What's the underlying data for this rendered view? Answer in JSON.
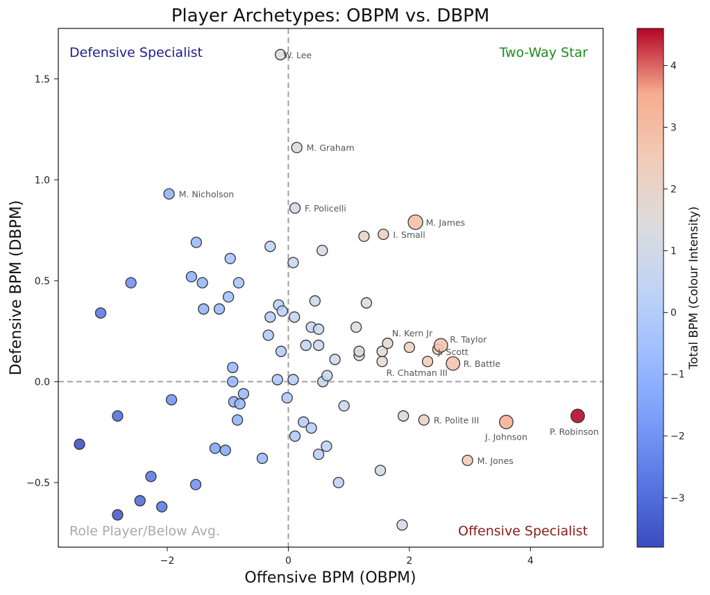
{
  "chart_data": {
    "type": "scatter",
    "title": "Player Archetypes: OBPM vs. DBPM",
    "xlabel": "Offensive BPM (OBPM)",
    "ylabel": "Defensive BPM (DBPM)",
    "xlim": [
      -3.8,
      5.2
    ],
    "ylim": [
      -0.82,
      1.75
    ],
    "xticks": [
      -2,
      0,
      2,
      4
    ],
    "yticks": [
      -0.5,
      0.0,
      0.5,
      1.0,
      1.5
    ],
    "xtick_labels": [
      "−2",
      "0",
      "2",
      "4"
    ],
    "ytick_labels": [
      "−0.5",
      "0.0",
      "0.5",
      "1.0",
      "1.5"
    ],
    "reference_lines": {
      "x": 0,
      "y": 0,
      "style": "dashed",
      "color": "#a0a0a0"
    },
    "quadrant_labels": [
      {
        "text": "Defensive Specialist",
        "position": "top-left",
        "color": "#1e1e8c"
      },
      {
        "text": "Two-Way Star",
        "position": "top-right",
        "color": "#1e8a1e"
      },
      {
        "text": "Role Player/Below Avg.",
        "position": "bottom-left",
        "color": "#aaaaaa"
      },
      {
        "text": "Offensive Specialist",
        "position": "bottom-right",
        "color": "#8b1a1a"
      }
    ],
    "colorbar": {
      "label": "Total BPM (Colour Intensity)",
      "range": [
        -3.8,
        4.6
      ],
      "ticks": [
        -3,
        -2,
        -1,
        0,
        1,
        2,
        3,
        4
      ],
      "tick_labels": [
        "−3",
        "−2",
        "−1",
        "0",
        "1",
        "2",
        "3",
        "4"
      ],
      "colormap": "coolwarm"
    },
    "points": [
      {
        "name": "W. Lee",
        "x": -0.13,
        "y": 1.62,
        "bpm": 1.5,
        "size": 1
      },
      {
        "name": "M. Graham",
        "x": 0.14,
        "y": 1.16,
        "bpm": 1.3,
        "size": 1
      },
      {
        "name": "M. Nicholson",
        "x": -1.97,
        "y": 0.93,
        "bpm": -1.04,
        "size": 1
      },
      {
        "name": "F. Policelli",
        "x": 0.11,
        "y": 0.86,
        "bpm": 0.97,
        "size": 1
      },
      {
        "name": "M. James",
        "x": 2.1,
        "y": 0.79,
        "bpm": 2.89,
        "size": 1.4
      },
      {
        "name": "I. Small",
        "x": 1.57,
        "y": 0.73,
        "bpm": 2.3,
        "size": 1
      },
      {
        "name": "",
        "x": 1.25,
        "y": 0.72,
        "bpm": 1.97,
        "size": 1
      },
      {
        "name": "",
        "x": 0.56,
        "y": 0.65,
        "bpm": 1.21,
        "size": 1
      },
      {
        "name": "",
        "x": -0.3,
        "y": 0.67,
        "bpm": 0.37,
        "size": 1
      },
      {
        "name": "",
        "x": 0.08,
        "y": 0.59,
        "bpm": 0.67,
        "size": 1
      },
      {
        "name": "",
        "x": -1.52,
        "y": 0.69,
        "bpm": -0.83,
        "size": 1
      },
      {
        "name": "",
        "x": -0.96,
        "y": 0.61,
        "bpm": -0.35,
        "size": 1
      },
      {
        "name": "",
        "x": -2.6,
        "y": 0.49,
        "bpm": -2.11,
        "size": 1
      },
      {
        "name": "",
        "x": -1.6,
        "y": 0.52,
        "bpm": -1.08,
        "size": 1
      },
      {
        "name": "",
        "x": -1.42,
        "y": 0.49,
        "bpm": -0.93,
        "size": 1
      },
      {
        "name": "",
        "x": -0.82,
        "y": 0.49,
        "bpm": -0.33,
        "size": 1
      },
      {
        "name": "",
        "x": -0.99,
        "y": 0.42,
        "bpm": -0.57,
        "size": 1
      },
      {
        "name": "",
        "x": 0.44,
        "y": 0.4,
        "bpm": 0.84,
        "size": 1
      },
      {
        "name": "",
        "x": 1.29,
        "y": 0.39,
        "bpm": 1.68,
        "size": 1
      },
      {
        "name": "",
        "x": -0.16,
        "y": 0.38,
        "bpm": 0.22,
        "size": 1
      },
      {
        "name": "",
        "x": -0.1,
        "y": 0.35,
        "bpm": 0.25,
        "size": 1
      },
      {
        "name": "",
        "x": -1.4,
        "y": 0.36,
        "bpm": -1.04,
        "size": 1
      },
      {
        "name": "",
        "x": -1.14,
        "y": 0.36,
        "bpm": -0.78,
        "size": 1
      },
      {
        "name": "",
        "x": -3.1,
        "y": 0.34,
        "bpm": -2.76,
        "size": 1
      },
      {
        "name": "",
        "x": -0.3,
        "y": 0.32,
        "bpm": 0.02,
        "size": 1
      },
      {
        "name": "",
        "x": 0.1,
        "y": 0.32,
        "bpm": 0.42,
        "size": 1
      },
      {
        "name": "",
        "x": 0.38,
        "y": 0.27,
        "bpm": 0.65,
        "size": 1
      },
      {
        "name": "",
        "x": 0.5,
        "y": 0.26,
        "bpm": 0.76,
        "size": 1
      },
      {
        "name": "",
        "x": 1.12,
        "y": 0.27,
        "bpm": 1.39,
        "size": 1
      },
      {
        "name": "",
        "x": -0.33,
        "y": 0.23,
        "bpm": -0.1,
        "size": 1
      },
      {
        "name": "",
        "x": 1.64,
        "y": 0.19,
        "bpm": 1.83,
        "size": 1
      },
      {
        "name": "N. Kern Jr",
        "x": 2.0,
        "y": 0.17,
        "bpm": 2.17,
        "size": 1
      },
      {
        "name": "R. Taylor",
        "x": 2.52,
        "y": 0.18,
        "bpm": 2.7,
        "size": 1.3
      },
      {
        "name": "J. Scott",
        "x": 2.47,
        "y": 0.16,
        "bpm": 2.63,
        "size": 1
      },
      {
        "name": "",
        "x": 0.29,
        "y": 0.18,
        "bpm": 0.47,
        "size": 1
      },
      {
        "name": "",
        "x": 0.5,
        "y": 0.18,
        "bpm": 0.68,
        "size": 1
      },
      {
        "name": "",
        "x": 1.17,
        "y": 0.15,
        "bpm": 1.32,
        "size": 1
      },
      {
        "name": "",
        "x": 1.17,
        "y": 0.13,
        "bpm": 1.3,
        "size": 1
      },
      {
        "name": "",
        "x": 1.55,
        "y": 0.15,
        "bpm": 1.7,
        "size": 1
      },
      {
        "name": "",
        "x": -0.12,
        "y": 0.15,
        "bpm": 0.03,
        "size": 1
      },
      {
        "name": "R. Chatman III",
        "x": 1.55,
        "y": 0.1,
        "bpm": 1.65,
        "size": 1
      },
      {
        "name": "",
        "x": 0.77,
        "y": 0.11,
        "bpm": 0.88,
        "size": 1
      },
      {
        "name": "",
        "x": 2.3,
        "y": 0.1,
        "bpm": 2.4,
        "size": 1
      },
      {
        "name": "R. Battle",
        "x": 2.72,
        "y": 0.09,
        "bpm": 2.81,
        "size": 1.3
      },
      {
        "name": "",
        "x": -0.92,
        "y": 0.07,
        "bpm": -0.85,
        "size": 1
      },
      {
        "name": "",
        "x": 0.64,
        "y": 0.03,
        "bpm": 0.67,
        "size": 1
      },
      {
        "name": "",
        "x": -0.18,
        "y": 0.01,
        "bpm": -0.17,
        "size": 1
      },
      {
        "name": "",
        "x": 0.08,
        "y": 0.01,
        "bpm": 0.09,
        "size": 1
      },
      {
        "name": "",
        "x": 0.57,
        "y": 0.0,
        "bpm": 0.57,
        "size": 1
      },
      {
        "name": "",
        "x": -0.92,
        "y": 0.0,
        "bpm": -0.92,
        "size": 1
      },
      {
        "name": "",
        "x": -1.93,
        "y": -0.09,
        "bpm": -2.02,
        "size": 1
      },
      {
        "name": "",
        "x": -0.74,
        "y": -0.06,
        "bpm": -0.8,
        "size": 1
      },
      {
        "name": "",
        "x": -0.9,
        "y": -0.1,
        "bpm": -1.0,
        "size": 1
      },
      {
        "name": "",
        "x": -0.8,
        "y": -0.11,
        "bpm": -0.91,
        "size": 1
      },
      {
        "name": "",
        "x": -0.02,
        "y": -0.08,
        "bpm": -0.1,
        "size": 1
      },
      {
        "name": "",
        "x": 0.92,
        "y": -0.12,
        "bpm": 0.8,
        "size": 1
      },
      {
        "name": "",
        "x": -2.82,
        "y": -0.17,
        "bpm": -2.99,
        "size": 1
      },
      {
        "name": "",
        "x": -0.84,
        "y": -0.19,
        "bpm": -1.03,
        "size": 1
      },
      {
        "name": "",
        "x": 1.9,
        "y": -0.17,
        "bpm": 1.73,
        "size": 1
      },
      {
        "name": "R. Polite III",
        "x": 2.24,
        "y": -0.19,
        "bpm": 2.05,
        "size": 1
      },
      {
        "name": "J. Johnson",
        "x": 3.6,
        "y": -0.2,
        "bpm": 3.4,
        "size": 1.3
      },
      {
        "name": "P. Robinson",
        "x": 4.78,
        "y": -0.17,
        "bpm": 4.61,
        "size": 1.3
      },
      {
        "name": "",
        "x": 0.25,
        "y": -0.2,
        "bpm": 0.05,
        "size": 1
      },
      {
        "name": "",
        "x": 0.38,
        "y": -0.23,
        "bpm": 0.15,
        "size": 1
      },
      {
        "name": "",
        "x": 0.11,
        "y": -0.27,
        "bpm": -0.16,
        "size": 1
      },
      {
        "name": "",
        "x": -3.45,
        "y": -0.31,
        "bpm": -3.76,
        "size": 1
      },
      {
        "name": "",
        "x": -1.21,
        "y": -0.33,
        "bpm": -1.54,
        "size": 1
      },
      {
        "name": "",
        "x": -1.04,
        "y": -0.34,
        "bpm": -1.38,
        "size": 1
      },
      {
        "name": "",
        "x": 0.63,
        "y": -0.32,
        "bpm": 0.31,
        "size": 1
      },
      {
        "name": "",
        "x": 0.5,
        "y": -0.36,
        "bpm": 0.14,
        "size": 1
      },
      {
        "name": "",
        "x": -0.43,
        "y": -0.38,
        "bpm": -0.81,
        "size": 1
      },
      {
        "name": "M. Jones",
        "x": 2.96,
        "y": -0.39,
        "bpm": 2.57,
        "size": 1
      },
      {
        "name": "",
        "x": 1.52,
        "y": -0.44,
        "bpm": 1.08,
        "size": 1
      },
      {
        "name": "",
        "x": -2.27,
        "y": -0.47,
        "bpm": -2.74,
        "size": 1
      },
      {
        "name": "",
        "x": -1.53,
        "y": -0.51,
        "bpm": -2.04,
        "size": 1
      },
      {
        "name": "",
        "x": 0.83,
        "y": -0.5,
        "bpm": 0.33,
        "size": 1
      },
      {
        "name": "",
        "x": -2.45,
        "y": -0.59,
        "bpm": -3.04,
        "size": 1
      },
      {
        "name": "",
        "x": -2.09,
        "y": -0.62,
        "bpm": -2.71,
        "size": 1
      },
      {
        "name": "",
        "x": -2.82,
        "y": -0.66,
        "bpm": -3.48,
        "size": 1
      },
      {
        "name": "",
        "x": 1.88,
        "y": -0.71,
        "bpm": 1.17,
        "size": 1
      }
    ]
  }
}
